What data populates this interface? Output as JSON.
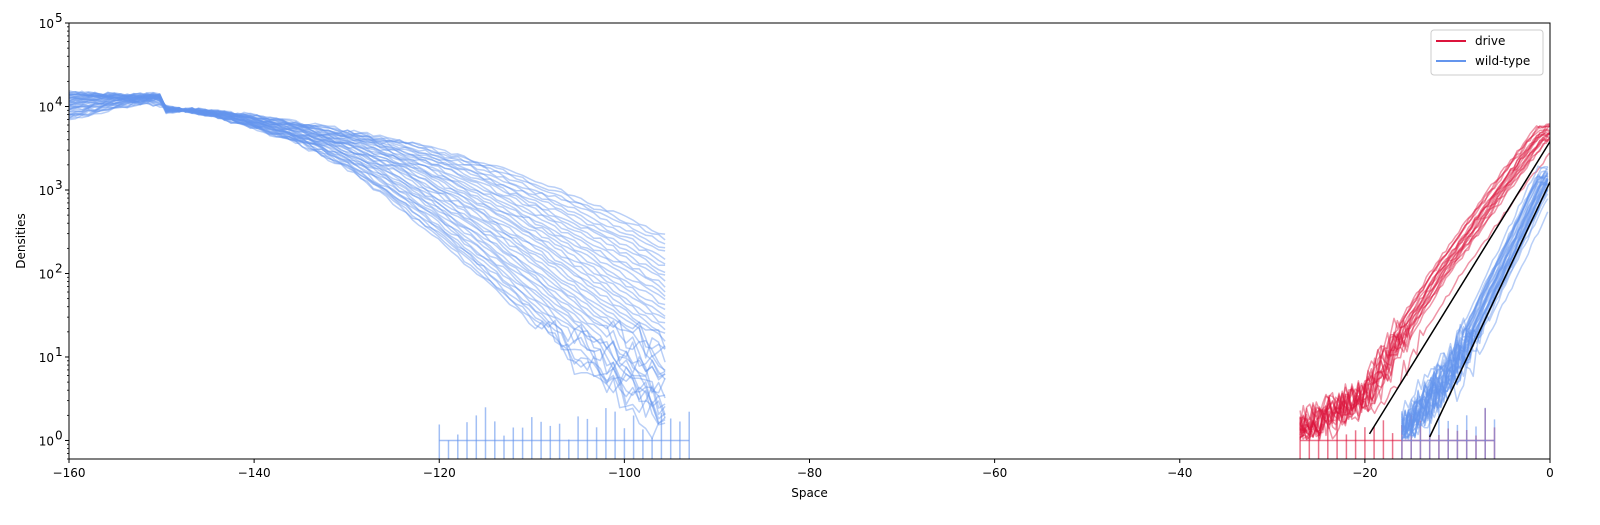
{
  "chart_data": {
    "type": "line",
    "title": "",
    "xlabel": "Space",
    "ylabel": "Densities",
    "xscale": "linear",
    "yscale": "log",
    "xlim": [
      -160,
      0
    ],
    "ylim": [
      0.6,
      100000
    ],
    "grid": false,
    "legend_position": "top-right",
    "x_ticks": [
      -160,
      -140,
      -120,
      -100,
      -80,
      -60,
      -40,
      -20,
      0
    ],
    "x_tick_labels": [
      "−160",
      "−140",
      "−120",
      "−100",
      "−80",
      "−60",
      "−40",
      "−20",
      "0"
    ],
    "y_ticks": [
      1,
      10,
      100,
      1000,
      10000,
      100000
    ],
    "y_tick_labels": [
      "10",
      "10",
      "10",
      "10",
      "10",
      "10"
    ],
    "y_tick_exponents": [
      "0",
      "1",
      "2",
      "3",
      "4",
      "5"
    ],
    "series": [
      {
        "name": "drive",
        "color": "#dc143c",
        "group": "front",
        "x": [
          -27,
          -25,
          -23,
          -21,
          -19,
          -17,
          -15,
          -13,
          -11,
          -9,
          -7,
          -5,
          -3,
          -1,
          0
        ],
        "y": [
          1,
          1.5,
          2,
          2.5,
          3.5,
          8,
          20,
          45,
          100,
          200,
          420,
          850,
          1700,
          3300,
          4500
        ]
      },
      {
        "name": "wild-type",
        "color": "#6495ed",
        "group": "front",
        "x": [
          -16,
          -14,
          -12,
          -10,
          -8,
          -6,
          -4,
          -2,
          0
        ],
        "y": [
          1,
          2,
          4,
          8,
          20,
          60,
          170,
          500,
          1500
        ]
      },
      {
        "name": "wild-type",
        "color": "#6495ed",
        "group": "tail",
        "x": [
          -160,
          -150,
          -145,
          -140,
          -135,
          -130,
          -125,
          -120,
          -115,
          -110,
          -105,
          -100,
          -95
        ],
        "y": [
          15000,
          10000,
          8000,
          5500,
          3500,
          1800,
          700,
          250,
          80,
          25,
          8,
          3,
          1
        ]
      }
    ],
    "fit_lines": [
      {
        "color": "#000000",
        "x": [
          -19.5,
          0
        ],
        "y": [
          1.2,
          3800
        ]
      },
      {
        "color": "#000000",
        "x": [
          -13,
          0
        ],
        "y": [
          1.1,
          1250
        ]
      }
    ],
    "legend": [
      {
        "label": "drive",
        "color": "#dc143c"
      },
      {
        "label": "wild-type",
        "color": "#6495ed"
      }
    ]
  }
}
